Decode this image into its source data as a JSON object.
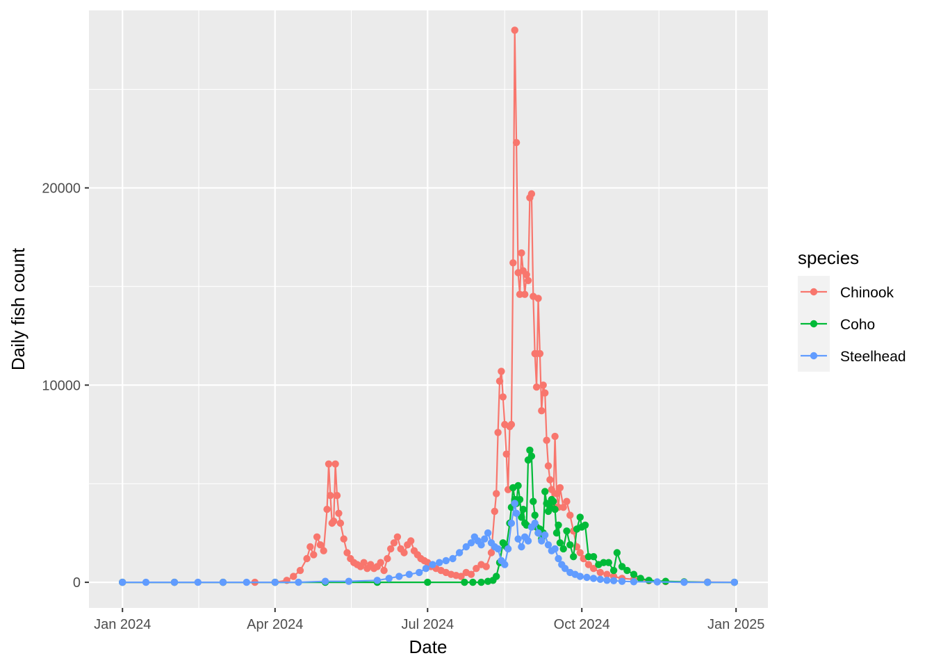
{
  "chart_data": {
    "type": "line",
    "xlabel": "Date",
    "ylabel": "Daily fish count",
    "x_range": [
      "2023-12-12",
      "2025-01-20"
    ],
    "ylim": [
      -1300,
      29000
    ],
    "x_ticks": [
      {
        "date": "2024-01-01",
        "label": "Jan 2024"
      },
      {
        "date": "2024-04-01",
        "label": "Apr 2024"
      },
      {
        "date": "2024-07-01",
        "label": "Jul 2024"
      },
      {
        "date": "2024-10-01",
        "label": "Oct 2024"
      },
      {
        "date": "2025-01-01",
        "label": "Jan 2025"
      }
    ],
    "y_ticks": [
      {
        "value": 0,
        "label": "0"
      },
      {
        "value": 10000,
        "label": "10000"
      },
      {
        "value": 20000,
        "label": "20000"
      }
    ],
    "grid": true,
    "markers": true,
    "legend": {
      "title": "species",
      "position": "right"
    },
    "series": [
      {
        "name": "Chinook",
        "color": "#F8766D",
        "points": [
          [
            "2024-01-01",
            0
          ],
          [
            "2024-02-01",
            0
          ],
          [
            "2024-03-01",
            0
          ],
          [
            "2024-03-20",
            0
          ],
          [
            "2024-04-01",
            0
          ],
          [
            "2024-04-08",
            100
          ],
          [
            "2024-04-12",
            300
          ],
          [
            "2024-04-16",
            600
          ],
          [
            "2024-04-20",
            1200
          ],
          [
            "2024-04-22",
            1800
          ],
          [
            "2024-04-24",
            1400
          ],
          [
            "2024-04-26",
            2300
          ],
          [
            "2024-04-28",
            1900
          ],
          [
            "2024-04-30",
            1600
          ],
          [
            "2024-05-02",
            3700
          ],
          [
            "2024-05-03",
            6000
          ],
          [
            "2024-05-04",
            4400
          ],
          [
            "2024-05-05",
            3000
          ],
          [
            "2024-05-06",
            3100
          ],
          [
            "2024-05-07",
            6000
          ],
          [
            "2024-05-08",
            4400
          ],
          [
            "2024-05-09",
            3500
          ],
          [
            "2024-05-10",
            3000
          ],
          [
            "2024-05-12",
            2200
          ],
          [
            "2024-05-14",
            1500
          ],
          [
            "2024-05-16",
            1200
          ],
          [
            "2024-05-18",
            1000
          ],
          [
            "2024-05-20",
            900
          ],
          [
            "2024-05-22",
            800
          ],
          [
            "2024-05-24",
            1000
          ],
          [
            "2024-05-26",
            700
          ],
          [
            "2024-05-28",
            900
          ],
          [
            "2024-05-30",
            700
          ],
          [
            "2024-06-01",
            800
          ],
          [
            "2024-06-03",
            1000
          ],
          [
            "2024-06-05",
            600
          ],
          [
            "2024-06-07",
            1200
          ],
          [
            "2024-06-09",
            1700
          ],
          [
            "2024-06-11",
            2000
          ],
          [
            "2024-06-13",
            2300
          ],
          [
            "2024-06-15",
            1700
          ],
          [
            "2024-06-17",
            1500
          ],
          [
            "2024-06-19",
            1900
          ],
          [
            "2024-06-21",
            2100
          ],
          [
            "2024-06-23",
            1600
          ],
          [
            "2024-06-25",
            1400
          ],
          [
            "2024-06-27",
            1200
          ],
          [
            "2024-06-29",
            1100
          ],
          [
            "2024-07-01",
            1000
          ],
          [
            "2024-07-03",
            800
          ],
          [
            "2024-07-06",
            700
          ],
          [
            "2024-07-09",
            600
          ],
          [
            "2024-07-12",
            500
          ],
          [
            "2024-07-15",
            400
          ],
          [
            "2024-07-18",
            350
          ],
          [
            "2024-07-21",
            300
          ],
          [
            "2024-07-24",
            500
          ],
          [
            "2024-07-27",
            400
          ],
          [
            "2024-07-30",
            700
          ],
          [
            "2024-08-02",
            900
          ],
          [
            "2024-08-05",
            800
          ],
          [
            "2024-08-08",
            1500
          ],
          [
            "2024-08-10",
            3600
          ],
          [
            "2024-08-11",
            4500
          ],
          [
            "2024-08-12",
            7600
          ],
          [
            "2024-08-13",
            10200
          ],
          [
            "2024-08-14",
            10700
          ],
          [
            "2024-08-15",
            9400
          ],
          [
            "2024-08-16",
            8000
          ],
          [
            "2024-08-17",
            6500
          ],
          [
            "2024-08-18",
            4700
          ],
          [
            "2024-08-19",
            7900
          ],
          [
            "2024-08-20",
            8000
          ],
          [
            "2024-08-21",
            16200
          ],
          [
            "2024-08-22",
            28000
          ],
          [
            "2024-08-23",
            22300
          ],
          [
            "2024-08-24",
            15700
          ],
          [
            "2024-08-25",
            14600
          ],
          [
            "2024-08-26",
            16700
          ],
          [
            "2024-08-27",
            15800
          ],
          [
            "2024-08-28",
            14600
          ],
          [
            "2024-08-29",
            15600
          ],
          [
            "2024-08-30",
            15300
          ],
          [
            "2024-08-31",
            19500
          ],
          [
            "2024-09-01",
            19700
          ],
          [
            "2024-09-02",
            14500
          ],
          [
            "2024-09-03",
            11600
          ],
          [
            "2024-09-04",
            9900
          ],
          [
            "2024-09-05",
            14400
          ],
          [
            "2024-09-06",
            11600
          ],
          [
            "2024-09-07",
            8700
          ],
          [
            "2024-09-08",
            10000
          ],
          [
            "2024-09-09",
            9600
          ],
          [
            "2024-09-10",
            7200
          ],
          [
            "2024-09-11",
            5900
          ],
          [
            "2024-09-12",
            5200
          ],
          [
            "2024-09-13",
            4700
          ],
          [
            "2024-09-14",
            3900
          ],
          [
            "2024-09-15",
            7400
          ],
          [
            "2024-09-16",
            4500
          ],
          [
            "2024-09-17",
            3800
          ],
          [
            "2024-09-18",
            4800
          ],
          [
            "2024-09-20",
            3800
          ],
          [
            "2024-09-22",
            4100
          ],
          [
            "2024-09-24",
            3400
          ],
          [
            "2024-09-26",
            2600
          ],
          [
            "2024-09-28",
            1800
          ],
          [
            "2024-09-30",
            1500
          ],
          [
            "2024-10-02",
            1200
          ],
          [
            "2024-10-05",
            900
          ],
          [
            "2024-10-08",
            700
          ],
          [
            "2024-10-12",
            500
          ],
          [
            "2024-10-16",
            400
          ],
          [
            "2024-10-20",
            300
          ],
          [
            "2024-10-25",
            200
          ],
          [
            "2024-11-01",
            150
          ],
          [
            "2024-11-10",
            80
          ],
          [
            "2024-11-20",
            40
          ],
          [
            "2024-12-01",
            20
          ],
          [
            "2024-12-15",
            10
          ],
          [
            "2024-12-31",
            0
          ]
        ]
      },
      {
        "name": "Coho",
        "color": "#00BA38",
        "points": [
          [
            "2024-01-01",
            0
          ],
          [
            "2024-02-01",
            0
          ],
          [
            "2024-03-01",
            0
          ],
          [
            "2024-04-01",
            0
          ],
          [
            "2024-05-01",
            0
          ],
          [
            "2024-06-01",
            0
          ],
          [
            "2024-07-01",
            0
          ],
          [
            "2024-07-23",
            0
          ],
          [
            "2024-07-28",
            0
          ],
          [
            "2024-08-02",
            0
          ],
          [
            "2024-08-06",
            50
          ],
          [
            "2024-08-09",
            100
          ],
          [
            "2024-08-11",
            300
          ],
          [
            "2024-08-13",
            1000
          ],
          [
            "2024-08-15",
            2000
          ],
          [
            "2024-08-17",
            1800
          ],
          [
            "2024-08-19",
            3000
          ],
          [
            "2024-08-20",
            3800
          ],
          [
            "2024-08-21",
            4800
          ],
          [
            "2024-08-22",
            4200
          ],
          [
            "2024-08-23",
            4000
          ],
          [
            "2024-08-24",
            4900
          ],
          [
            "2024-08-25",
            4200
          ],
          [
            "2024-08-26",
            3300
          ],
          [
            "2024-08-27",
            3700
          ],
          [
            "2024-08-28",
            3000
          ],
          [
            "2024-08-29",
            2900
          ],
          [
            "2024-08-30",
            6200
          ],
          [
            "2024-08-31",
            6700
          ],
          [
            "2024-09-01",
            6400
          ],
          [
            "2024-09-02",
            4100
          ],
          [
            "2024-09-03",
            3400
          ],
          [
            "2024-09-04",
            2800
          ],
          [
            "2024-09-05",
            2500
          ],
          [
            "2024-09-06",
            2700
          ],
          [
            "2024-09-07",
            2200
          ],
          [
            "2024-09-08",
            2500
          ],
          [
            "2024-09-09",
            4600
          ],
          [
            "2024-09-10",
            4000
          ],
          [
            "2024-09-11",
            3600
          ],
          [
            "2024-09-12",
            3800
          ],
          [
            "2024-09-13",
            4200
          ],
          [
            "2024-09-14",
            4100
          ],
          [
            "2024-09-15",
            3700
          ],
          [
            "2024-09-16",
            2500
          ],
          [
            "2024-09-17",
            2900
          ],
          [
            "2024-09-18",
            2000
          ],
          [
            "2024-09-20",
            1700
          ],
          [
            "2024-09-22",
            2600
          ],
          [
            "2024-09-24",
            1900
          ],
          [
            "2024-09-26",
            1300
          ],
          [
            "2024-09-28",
            2700
          ],
          [
            "2024-09-30",
            3300
          ],
          [
            "2024-10-01",
            2800
          ],
          [
            "2024-10-03",
            2900
          ],
          [
            "2024-10-05",
            1300
          ],
          [
            "2024-10-08",
            1300
          ],
          [
            "2024-10-11",
            900
          ],
          [
            "2024-10-14",
            1000
          ],
          [
            "2024-10-17",
            1000
          ],
          [
            "2024-10-20",
            600
          ],
          [
            "2024-10-22",
            1500
          ],
          [
            "2024-10-25",
            800
          ],
          [
            "2024-10-28",
            600
          ],
          [
            "2024-11-01",
            400
          ],
          [
            "2024-11-05",
            200
          ],
          [
            "2024-11-10",
            100
          ],
          [
            "2024-11-20",
            50
          ],
          [
            "2024-12-01",
            20
          ],
          [
            "2024-12-15",
            0
          ],
          [
            "2024-12-31",
            0
          ]
        ]
      },
      {
        "name": "Steelhead",
        "color": "#619CFF",
        "points": [
          [
            "2024-01-01",
            0
          ],
          [
            "2024-01-15",
            0
          ],
          [
            "2024-02-01",
            0
          ],
          [
            "2024-02-15",
            0
          ],
          [
            "2024-03-01",
            0
          ],
          [
            "2024-03-15",
            0
          ],
          [
            "2024-04-01",
            0
          ],
          [
            "2024-04-15",
            0
          ],
          [
            "2024-05-01",
            50
          ],
          [
            "2024-05-15",
            50
          ],
          [
            "2024-06-01",
            100
          ],
          [
            "2024-06-08",
            200
          ],
          [
            "2024-06-14",
            300
          ],
          [
            "2024-06-20",
            400
          ],
          [
            "2024-06-26",
            500
          ],
          [
            "2024-06-30",
            700
          ],
          [
            "2024-07-04",
            900
          ],
          [
            "2024-07-08",
            1000
          ],
          [
            "2024-07-12",
            1100
          ],
          [
            "2024-07-16",
            1200
          ],
          [
            "2024-07-20",
            1500
          ],
          [
            "2024-07-24",
            1800
          ],
          [
            "2024-07-27",
            2000
          ],
          [
            "2024-07-29",
            2300
          ],
          [
            "2024-07-31",
            2100
          ],
          [
            "2024-08-02",
            1900
          ],
          [
            "2024-08-04",
            2200
          ],
          [
            "2024-08-06",
            2500
          ],
          [
            "2024-08-08",
            2000
          ],
          [
            "2024-08-10",
            1800
          ],
          [
            "2024-08-12",
            1700
          ],
          [
            "2024-08-14",
            1100
          ],
          [
            "2024-08-16",
            900
          ],
          [
            "2024-08-18",
            1700
          ],
          [
            "2024-08-20",
            3000
          ],
          [
            "2024-08-22",
            4000
          ],
          [
            "2024-08-23",
            3500
          ],
          [
            "2024-08-24",
            2200
          ],
          [
            "2024-08-26",
            1800
          ],
          [
            "2024-08-28",
            2300
          ],
          [
            "2024-08-30",
            2100
          ],
          [
            "2024-09-01",
            2800
          ],
          [
            "2024-09-03",
            3000
          ],
          [
            "2024-09-05",
            2500
          ],
          [
            "2024-09-07",
            2100
          ],
          [
            "2024-09-09",
            2400
          ],
          [
            "2024-09-11",
            1900
          ],
          [
            "2024-09-13",
            1600
          ],
          [
            "2024-09-15",
            1700
          ],
          [
            "2024-09-17",
            1200
          ],
          [
            "2024-09-19",
            900
          ],
          [
            "2024-09-21",
            700
          ],
          [
            "2024-09-24",
            500
          ],
          [
            "2024-09-27",
            400
          ],
          [
            "2024-09-30",
            300
          ],
          [
            "2024-10-04",
            250
          ],
          [
            "2024-10-08",
            200
          ],
          [
            "2024-10-12",
            150
          ],
          [
            "2024-10-16",
            100
          ],
          [
            "2024-10-20",
            80
          ],
          [
            "2024-10-25",
            50
          ],
          [
            "2024-11-01",
            30
          ],
          [
            "2024-11-15",
            20
          ],
          [
            "2024-12-01",
            0
          ],
          [
            "2024-12-15",
            0
          ],
          [
            "2024-12-31",
            0
          ]
        ]
      }
    ]
  }
}
